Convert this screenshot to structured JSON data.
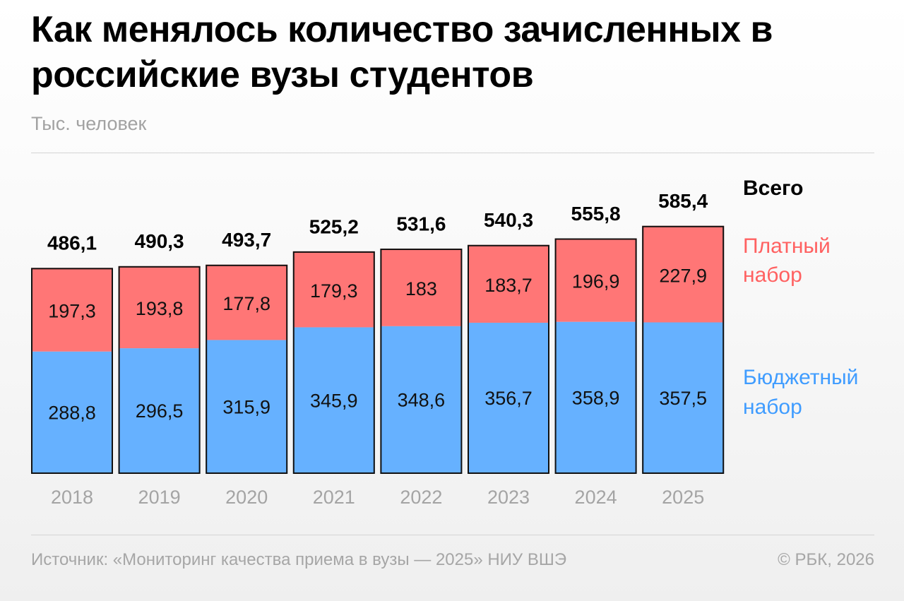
{
  "title": "Как менялось количество зачисленных в российские вузы студентов",
  "subtitle": "Тыс. человек",
  "source": "Источник: «Мониторинг качества приема в вузы — 2025» НИУ ВШЭ",
  "copyright": "© РБК, 2026",
  "colors": {
    "budget": "#66b1ff",
    "paid": "#ff7676",
    "paid_text": "#ff6161",
    "budget_text": "#3f9cff",
    "axis_text": "#a4a4a4",
    "border": "#111111"
  },
  "chart_data": {
    "type": "bar",
    "stacked": true,
    "categories": [
      "2018",
      "2019",
      "2020",
      "2021",
      "2022",
      "2023",
      "2024",
      "2025"
    ],
    "series": [
      {
        "name": "Бюджетный набор",
        "values": [
          288.8,
          296.5,
          315.9,
          345.9,
          348.6,
          356.7,
          358.9,
          357.5
        ],
        "labels": [
          "288,8",
          "296,5",
          "315,9",
          "345,9",
          "348,6",
          "356,7",
          "358,9",
          "357,5"
        ]
      },
      {
        "name": "Платный набор",
        "values": [
          197.3,
          193.8,
          177.8,
          179.3,
          183,
          183.7,
          196.9,
          227.9
        ],
        "labels": [
          "197,3",
          "193,8",
          "177,8",
          "179,3",
          "183",
          "183,7",
          "196,9",
          "227,9"
        ]
      }
    ],
    "totals": {
      "name": "Всего",
      "values": [
        486.1,
        490.3,
        493.7,
        525.2,
        531.6,
        540.3,
        555.8,
        585.4
      ],
      "labels": [
        "486,1",
        "490,3",
        "493,7",
        "525,2",
        "531,6",
        "540,3",
        "555,8",
        "585,4"
      ]
    },
    "legend": {
      "position": "right",
      "total": "Всего",
      "paid": [
        "Платный",
        "набор"
      ],
      "budget": [
        "Бюджетный",
        "набор"
      ]
    },
    "ylim": [
      0,
      600
    ],
    "grid": false
  }
}
